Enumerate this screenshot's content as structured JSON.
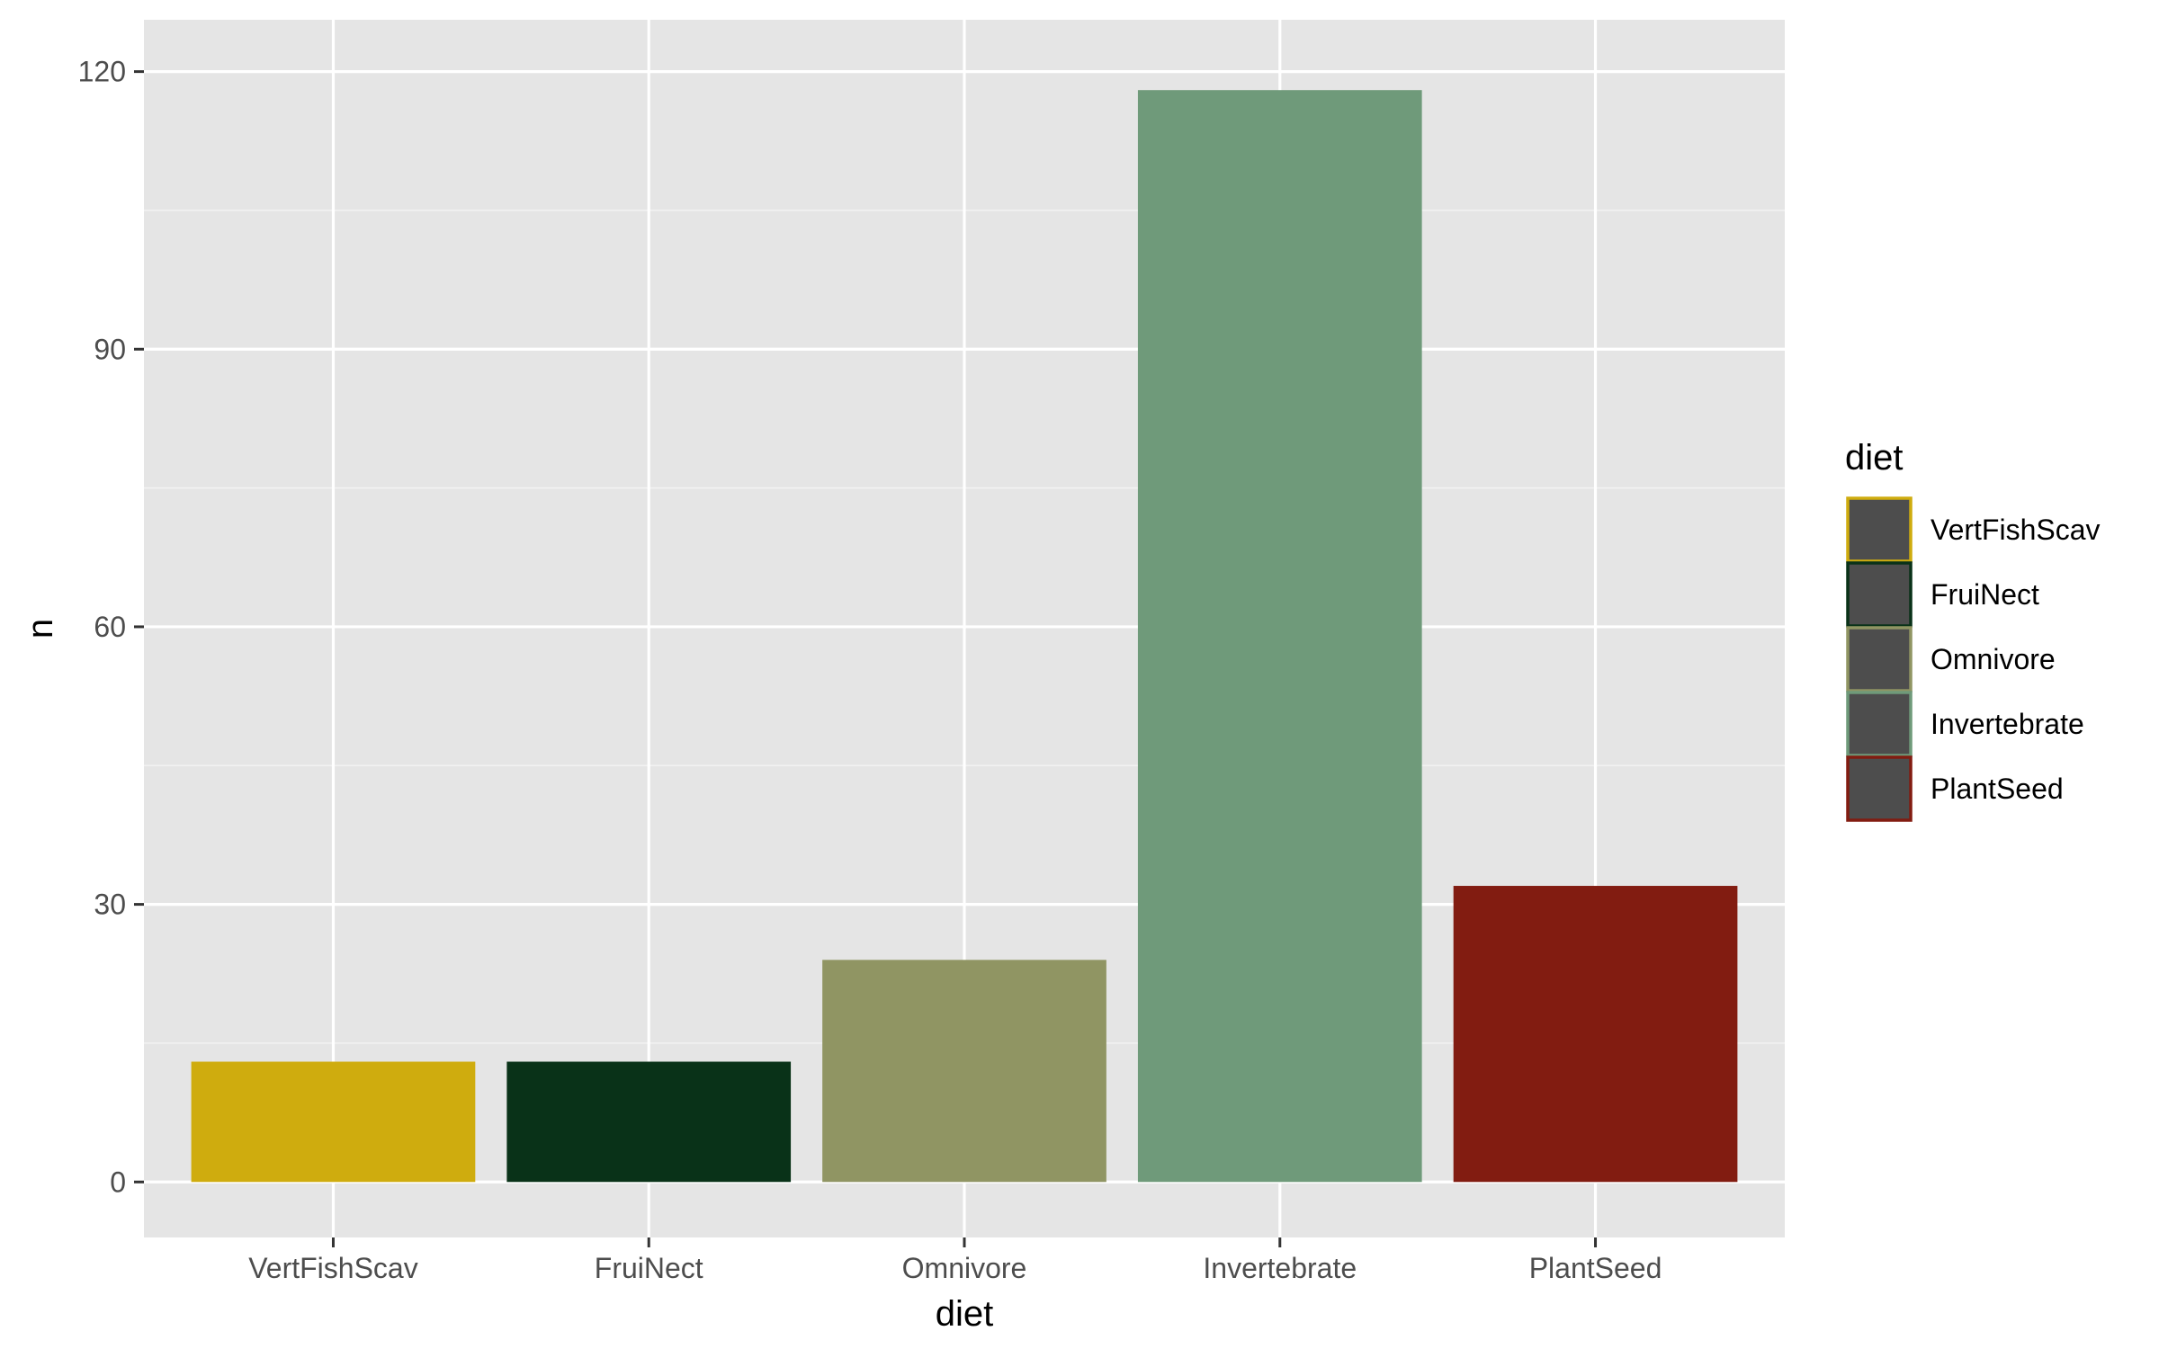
{
  "chart_data": {
    "type": "bar",
    "xlabel": "diet",
    "ylabel": "n",
    "categories": [
      "VertFishScav",
      "FruiNect",
      "Omnivore",
      "Invertebrate",
      "PlantSeed"
    ],
    "values": [
      13,
      13,
      24,
      118,
      32
    ],
    "colors": [
      "#CFAC0E",
      "#093218",
      "#909563",
      "#6F9A7A",
      "#821C11"
    ],
    "ylim": [
      -6,
      125.6
    ],
    "yticks": [
      0,
      30,
      60,
      90,
      120
    ],
    "ytick_labels": [
      "0",
      "30",
      "60",
      "90",
      "120"
    ],
    "grid": true,
    "legend": {
      "title": "diet",
      "position": "right",
      "fill": "#4D4D4D",
      "items": [
        "VertFishScav",
        "FruiNect",
        "Omnivore",
        "Invertebrate",
        "PlantSeed"
      ]
    }
  }
}
